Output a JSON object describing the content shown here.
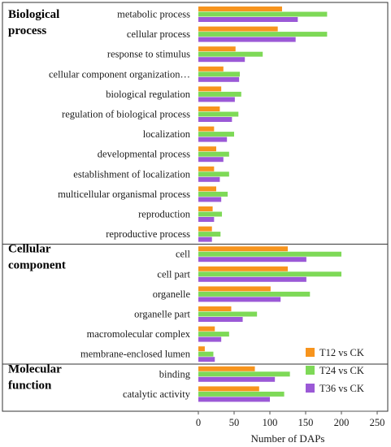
{
  "chart_data": {
    "type": "bar",
    "orientation": "horizontal",
    "xlabel": "Number of DAPs",
    "xlim": [
      0,
      250
    ],
    "xticks": [
      0,
      50,
      100,
      150,
      200,
      250
    ],
    "grid": false,
    "legend_placement": "bottom-right",
    "groups": [
      {
        "label": "Biological process",
        "categories": [
          "metabolic process",
          "cellular process",
          "response to stimulus",
          "cellular component organization…",
          "biological regulation",
          "regulation of biological process",
          "localization",
          "developmental process",
          "establishment of localization",
          "multicellular organismal process",
          "reproduction",
          "reproductive process"
        ]
      },
      {
        "label": "Cellular component",
        "categories": [
          "cell",
          "cell part",
          "organelle",
          "organelle part",
          "macromolecular complex",
          "membrane-enclosed lumen"
        ]
      },
      {
        "label": "Molecular function",
        "categories": [
          "binding",
          "catalytic activity"
        ]
      }
    ],
    "series": [
      {
        "name": "T12 vs CK",
        "color": "#f7941d",
        "values": [
          117,
          111,
          52,
          35,
          32,
          30,
          22,
          25,
          22,
          25,
          20,
          19,
          125,
          125,
          101,
          46,
          23,
          9,
          79,
          85
        ]
      },
      {
        "name": "T24 vs CK",
        "color": "#7ed957",
        "values": [
          180,
          180,
          90,
          58,
          60,
          56,
          50,
          43,
          43,
          41,
          33,
          31,
          200,
          200,
          156,
          82,
          43,
          21,
          128,
          120
        ]
      },
      {
        "name": "T36 vs CK",
        "color": "#9b59d6",
        "values": [
          139,
          136,
          65,
          57,
          51,
          47,
          40,
          35,
          30,
          32,
          22,
          19,
          151,
          151,
          115,
          62,
          32,
          23,
          107,
          100
        ]
      }
    ]
  }
}
